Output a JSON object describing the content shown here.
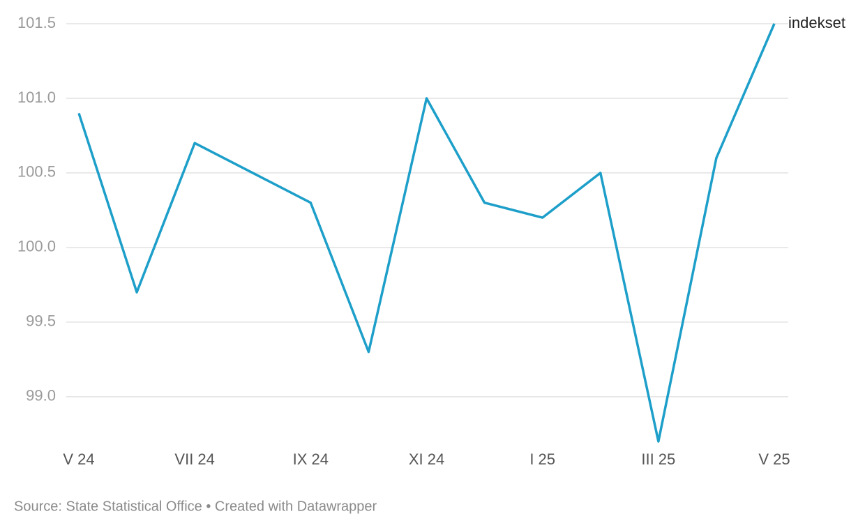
{
  "chart_data": {
    "type": "line",
    "categories": [
      "V 24",
      null,
      "VII 24",
      null,
      "IX 24",
      null,
      "XI 24",
      null,
      "I 25",
      null,
      "III 25",
      null,
      "V 25"
    ],
    "series": [
      {
        "name": "indekset",
        "color": "#1d9fc9",
        "values": [
          100.9,
          99.7,
          100.7,
          100.5,
          100.3,
          99.3,
          101.0,
          100.3,
          100.2,
          100.5,
          98.7,
          100.6,
          101.5
        ]
      }
    ],
    "ylim": [
      98.7,
      101.5
    ],
    "yticks": [
      {
        "value": 99,
        "label": "99.0"
      },
      99.5,
      {
        "value": 100,
        "label": "100.0"
      },
      100.5,
      {
        "value": 101,
        "label": "101.0"
      },
      101.5
    ],
    "grid": true,
    "source": "Source: State Statistical Office • Created with Datawrapper"
  }
}
